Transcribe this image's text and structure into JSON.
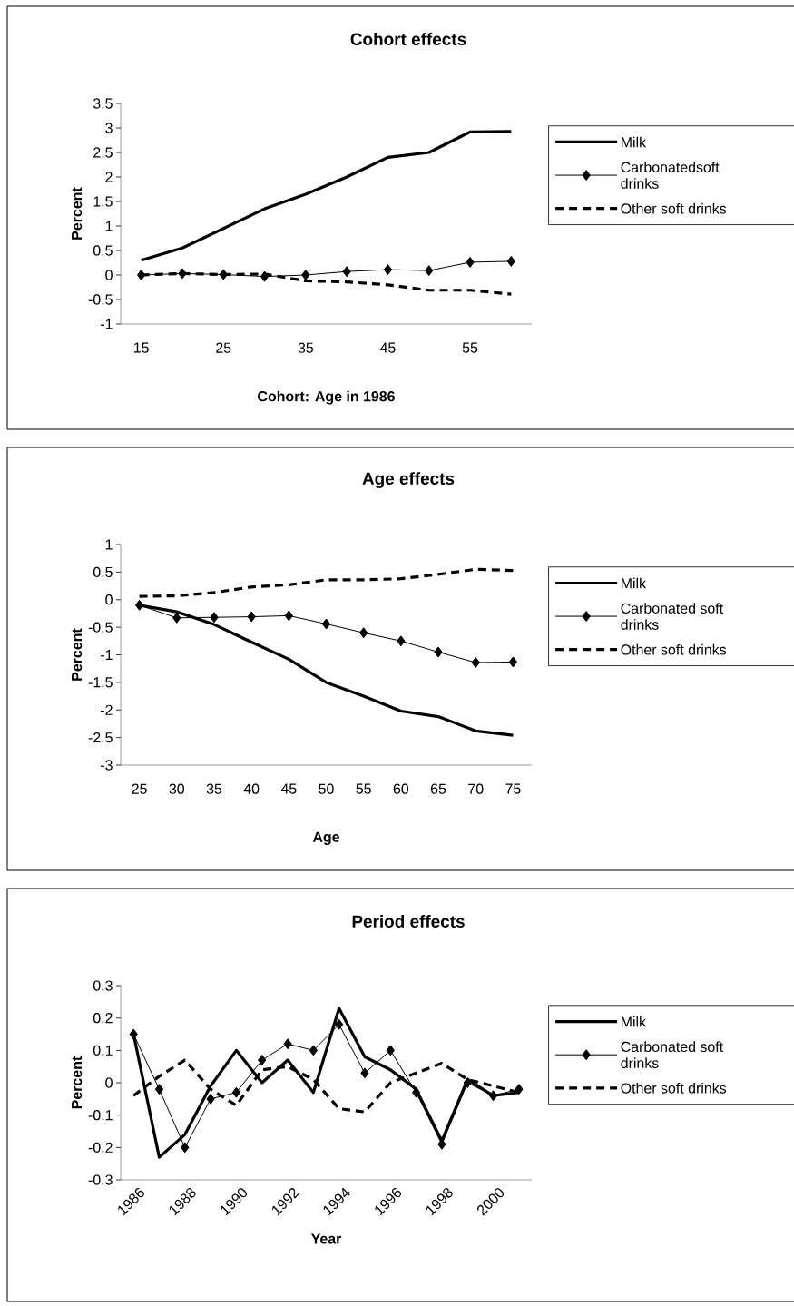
{
  "chart_data": [
    {
      "type": "line",
      "title": "Cohort effects",
      "xlabel": "Cohort: Age in 1986",
      "ylabel": "Percent",
      "categories": [
        "15",
        null,
        "25",
        null,
        "35",
        null,
        "45",
        null,
        "55",
        null
      ],
      "series": [
        {
          "name": "Milk",
          "color": "#000000",
          "marker": "none",
          "line_style": "solid",
          "values": [
            0.3,
            0.55,
            0.95,
            1.35,
            1.65,
            2.0,
            2.4,
            2.5,
            2.92,
            2.93
          ]
        },
        {
          "name": " Carbonatedsoft drinks",
          "color": "#000000",
          "marker": "diamond",
          "line_style": "solid",
          "values": [
            0,
            0.03,
            0.01,
            -0.03,
            0,
            0.07,
            0.11,
            0.09,
            0.26,
            0.28
          ]
        },
        {
          "name": "Other soft drinks",
          "color": "#000000",
          "marker": "none",
          "line_style": "dashed",
          "values": [
            0,
            0.03,
            0.01,
            0.02,
            -0.12,
            -0.14,
            -0.2,
            -0.31,
            -0.31,
            -0.39
          ]
        }
      ],
      "ylim": [
        -1,
        3.5
      ],
      "yticks": [
        -1,
        -0.5,
        0,
        0.5,
        1,
        1.5,
        2,
        2.5,
        3,
        3.5
      ],
      "legend": "right"
    },
    {
      "type": "line",
      "title": "Age effects",
      "xlabel": "Age",
      "ylabel": "Percent",
      "categories": [
        "25",
        "30",
        "35",
        "40",
        "45",
        "50",
        "55",
        "60",
        "65",
        "70",
        "75"
      ],
      "series": [
        {
          "name": "Milk",
          "color": "#000000",
          "marker": "none",
          "line_style": "solid",
          "values": [
            -0.1,
            -0.22,
            -0.45,
            -0.77,
            -1.08,
            -1.5,
            -1.75,
            -2.02,
            -2.12,
            -2.38,
            -2.46
          ]
        },
        {
          "name": "Carbonated soft drinks",
          "color": "#000000",
          "marker": "diamond",
          "line_style": "solid",
          "values": [
            -0.1,
            -0.33,
            -0.32,
            -0.31,
            -0.29,
            -0.44,
            -0.6,
            -0.75,
            -0.95,
            -1.14,
            -1.13
          ]
        },
        {
          "name": "Other soft drinks",
          "color": "#000000",
          "marker": "none",
          "line_style": "dashed",
          "values": [
            0.06,
            0.07,
            0.13,
            0.23,
            0.27,
            0.36,
            0.36,
            0.38,
            0.46,
            0.55,
            0.53
          ]
        }
      ],
      "ylim": [
        -3,
        1
      ],
      "yticks": [
        -3,
        -2.5,
        -2,
        -1.5,
        -1,
        -0.5,
        0,
        0.5,
        1
      ],
      "legend": "right"
    },
    {
      "type": "line",
      "title": "Period effects",
      "xlabel": "Year",
      "ylabel": "Percent",
      "categories": [
        "1986",
        null,
        "1988",
        null,
        "1990",
        null,
        "1992",
        null,
        "1994",
        null,
        "1996",
        null,
        "1998",
        null,
        "2000",
        null
      ],
      "series": [
        {
          "name": "Milk",
          "color": "#000000",
          "marker": "none",
          "line_style": "solid",
          "values": [
            0.15,
            -0.23,
            -0.16,
            -0.01,
            0.1,
            0,
            0.07,
            -0.03,
            0.23,
            0.08,
            0.04,
            -0.02,
            -0.18,
            0.01,
            -0.04,
            -0.03
          ]
        },
        {
          "name": "Carbonated soft drinks",
          "color": "#000000",
          "marker": "diamond",
          "line_style": "solid",
          "values": [
            0.15,
            -0.02,
            -0.2,
            -0.05,
            -0.03,
            0.07,
            0.12,
            0.1,
            0.18,
            0.03,
            0.1,
            -0.03,
            -0.19,
            0,
            -0.04,
            -0.02
          ]
        },
        {
          "name": "Other soft drinks",
          "color": "#000000",
          "marker": "none",
          "line_style": "dashed",
          "values": [
            -0.04,
            0.02,
            0.07,
            -0.02,
            -0.07,
            0.04,
            0.05,
            0.01,
            -0.08,
            -0.09,
            0,
            0.03,
            0.06,
            0.01,
            -0.01,
            -0.03
          ]
        }
      ],
      "ylim": [
        -0.3,
        0.3
      ],
      "yticks": [
        -0.3,
        -0.2,
        -0.1,
        0,
        0.1,
        0.2,
        0.3
      ],
      "legend": "right"
    }
  ]
}
